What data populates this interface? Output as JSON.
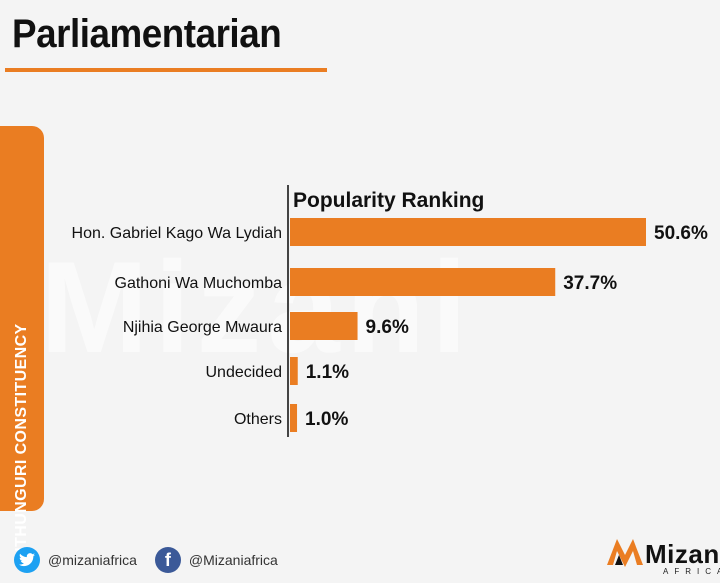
{
  "header": {
    "title": "Parliamentarian"
  },
  "sidebar": {
    "label": "GITHUNGURI CONSTITUENCY"
  },
  "watermark": {
    "text": "Mizani"
  },
  "footer": {
    "twitter_handle": "@mizaniafrica",
    "facebook_handle": "@Mizaniafrica",
    "facebook_glyph": "f"
  },
  "logo": {
    "name": "Mizani",
    "sub": "AFRICA"
  },
  "colors": {
    "accent": "#ea7d22",
    "text": "#111111",
    "axis": "#333333"
  },
  "chart_data": {
    "type": "bar",
    "orientation": "horizontal",
    "title": "Popularity Ranking",
    "categories": [
      "Hon. Gabriel Kago Wa Lydiah",
      "Gathoni Wa Muchomba",
      "Njihia George Mwaura",
      "Undecided",
      "Others"
    ],
    "values": [
      50.6,
      37.7,
      9.6,
      1.1,
      1.0
    ],
    "value_labels": [
      "50.6%",
      "37.7%",
      "9.6%",
      "1.1%",
      "1.0%"
    ],
    "unit": "%",
    "xlim": [
      0,
      50.6
    ],
    "grid": false
  }
}
